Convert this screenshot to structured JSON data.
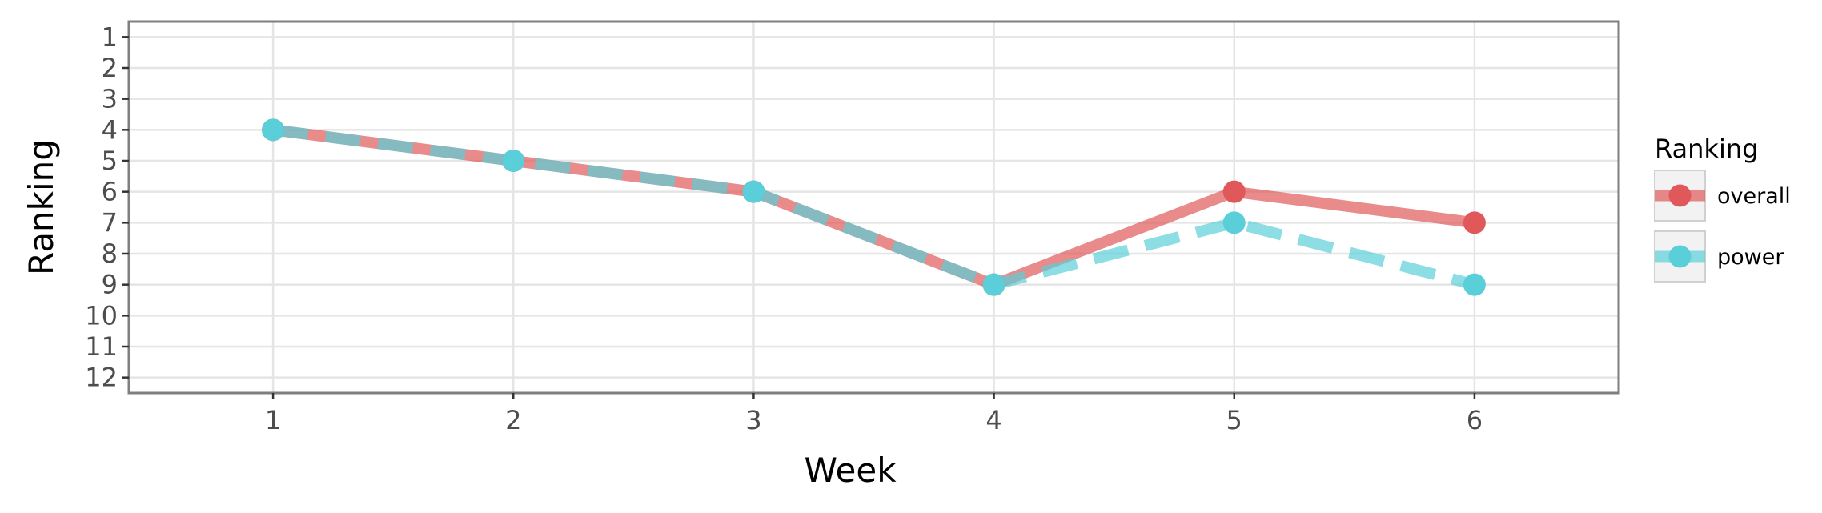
{
  "chart_data": {
    "type": "line",
    "title": "",
    "xlabel": "Week",
    "ylabel": "Ranking",
    "x": [
      1,
      2,
      3,
      4,
      5,
      6
    ],
    "x_ticks": [
      "1",
      "2",
      "3",
      "4",
      "5",
      "6"
    ],
    "y_ticks": [
      "1",
      "2",
      "3",
      "4",
      "5",
      "6",
      "7",
      "8",
      "9",
      "10",
      "11",
      "12"
    ],
    "xlim": [
      0.4,
      6.6
    ],
    "ylim": [
      12.5,
      0.5
    ],
    "y_reversed": true,
    "grid": true,
    "legend": {
      "title": "Ranking",
      "placement": "right"
    },
    "series": [
      {
        "name": "overall",
        "values": [
          4,
          5,
          6,
          9,
          6,
          7
        ],
        "color": "#E0585A",
        "line_style": "solid"
      },
      {
        "name": "power",
        "values": [
          4,
          5,
          6,
          9,
          7,
          9
        ],
        "color": "#5BCFD9",
        "line_style": "dashed"
      }
    ]
  }
}
